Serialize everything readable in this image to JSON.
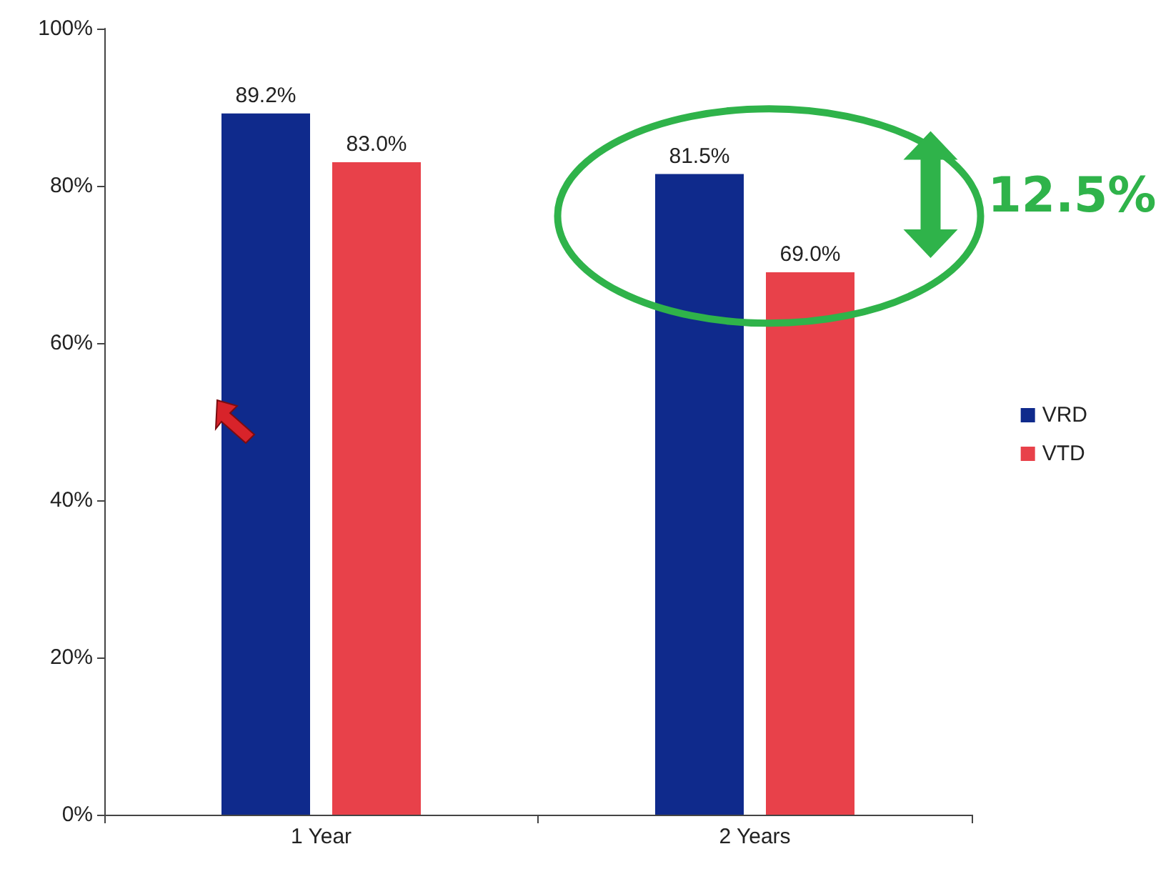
{
  "chart_data": {
    "type": "bar",
    "categories": [
      "1 Year",
      "2 Years"
    ],
    "series": [
      {
        "name": "VRD",
        "color": "#0f2a8c",
        "values": [
          89.2,
          81.5
        ],
        "value_labels": [
          "89.2%",
          "81.5%"
        ]
      },
      {
        "name": "VTD",
        "color": "#e8414a",
        "values": [
          83.0,
          69.0
        ],
        "value_labels": [
          "83.0%",
          "69.0%"
        ]
      }
    ],
    "ylim": [
      0,
      100
    ],
    "yticks": [
      {
        "value": 0,
        "label": "0%"
      },
      {
        "value": 20,
        "label": "20%"
      },
      {
        "value": 40,
        "label": "40%"
      },
      {
        "value": 60,
        "label": "60%"
      },
      {
        "value": 80,
        "label": "80%"
      },
      {
        "value": 100,
        "label": "100%"
      }
    ],
    "grid": false,
    "legend": "right",
    "annotations": [
      "12.5%"
    ]
  }
}
